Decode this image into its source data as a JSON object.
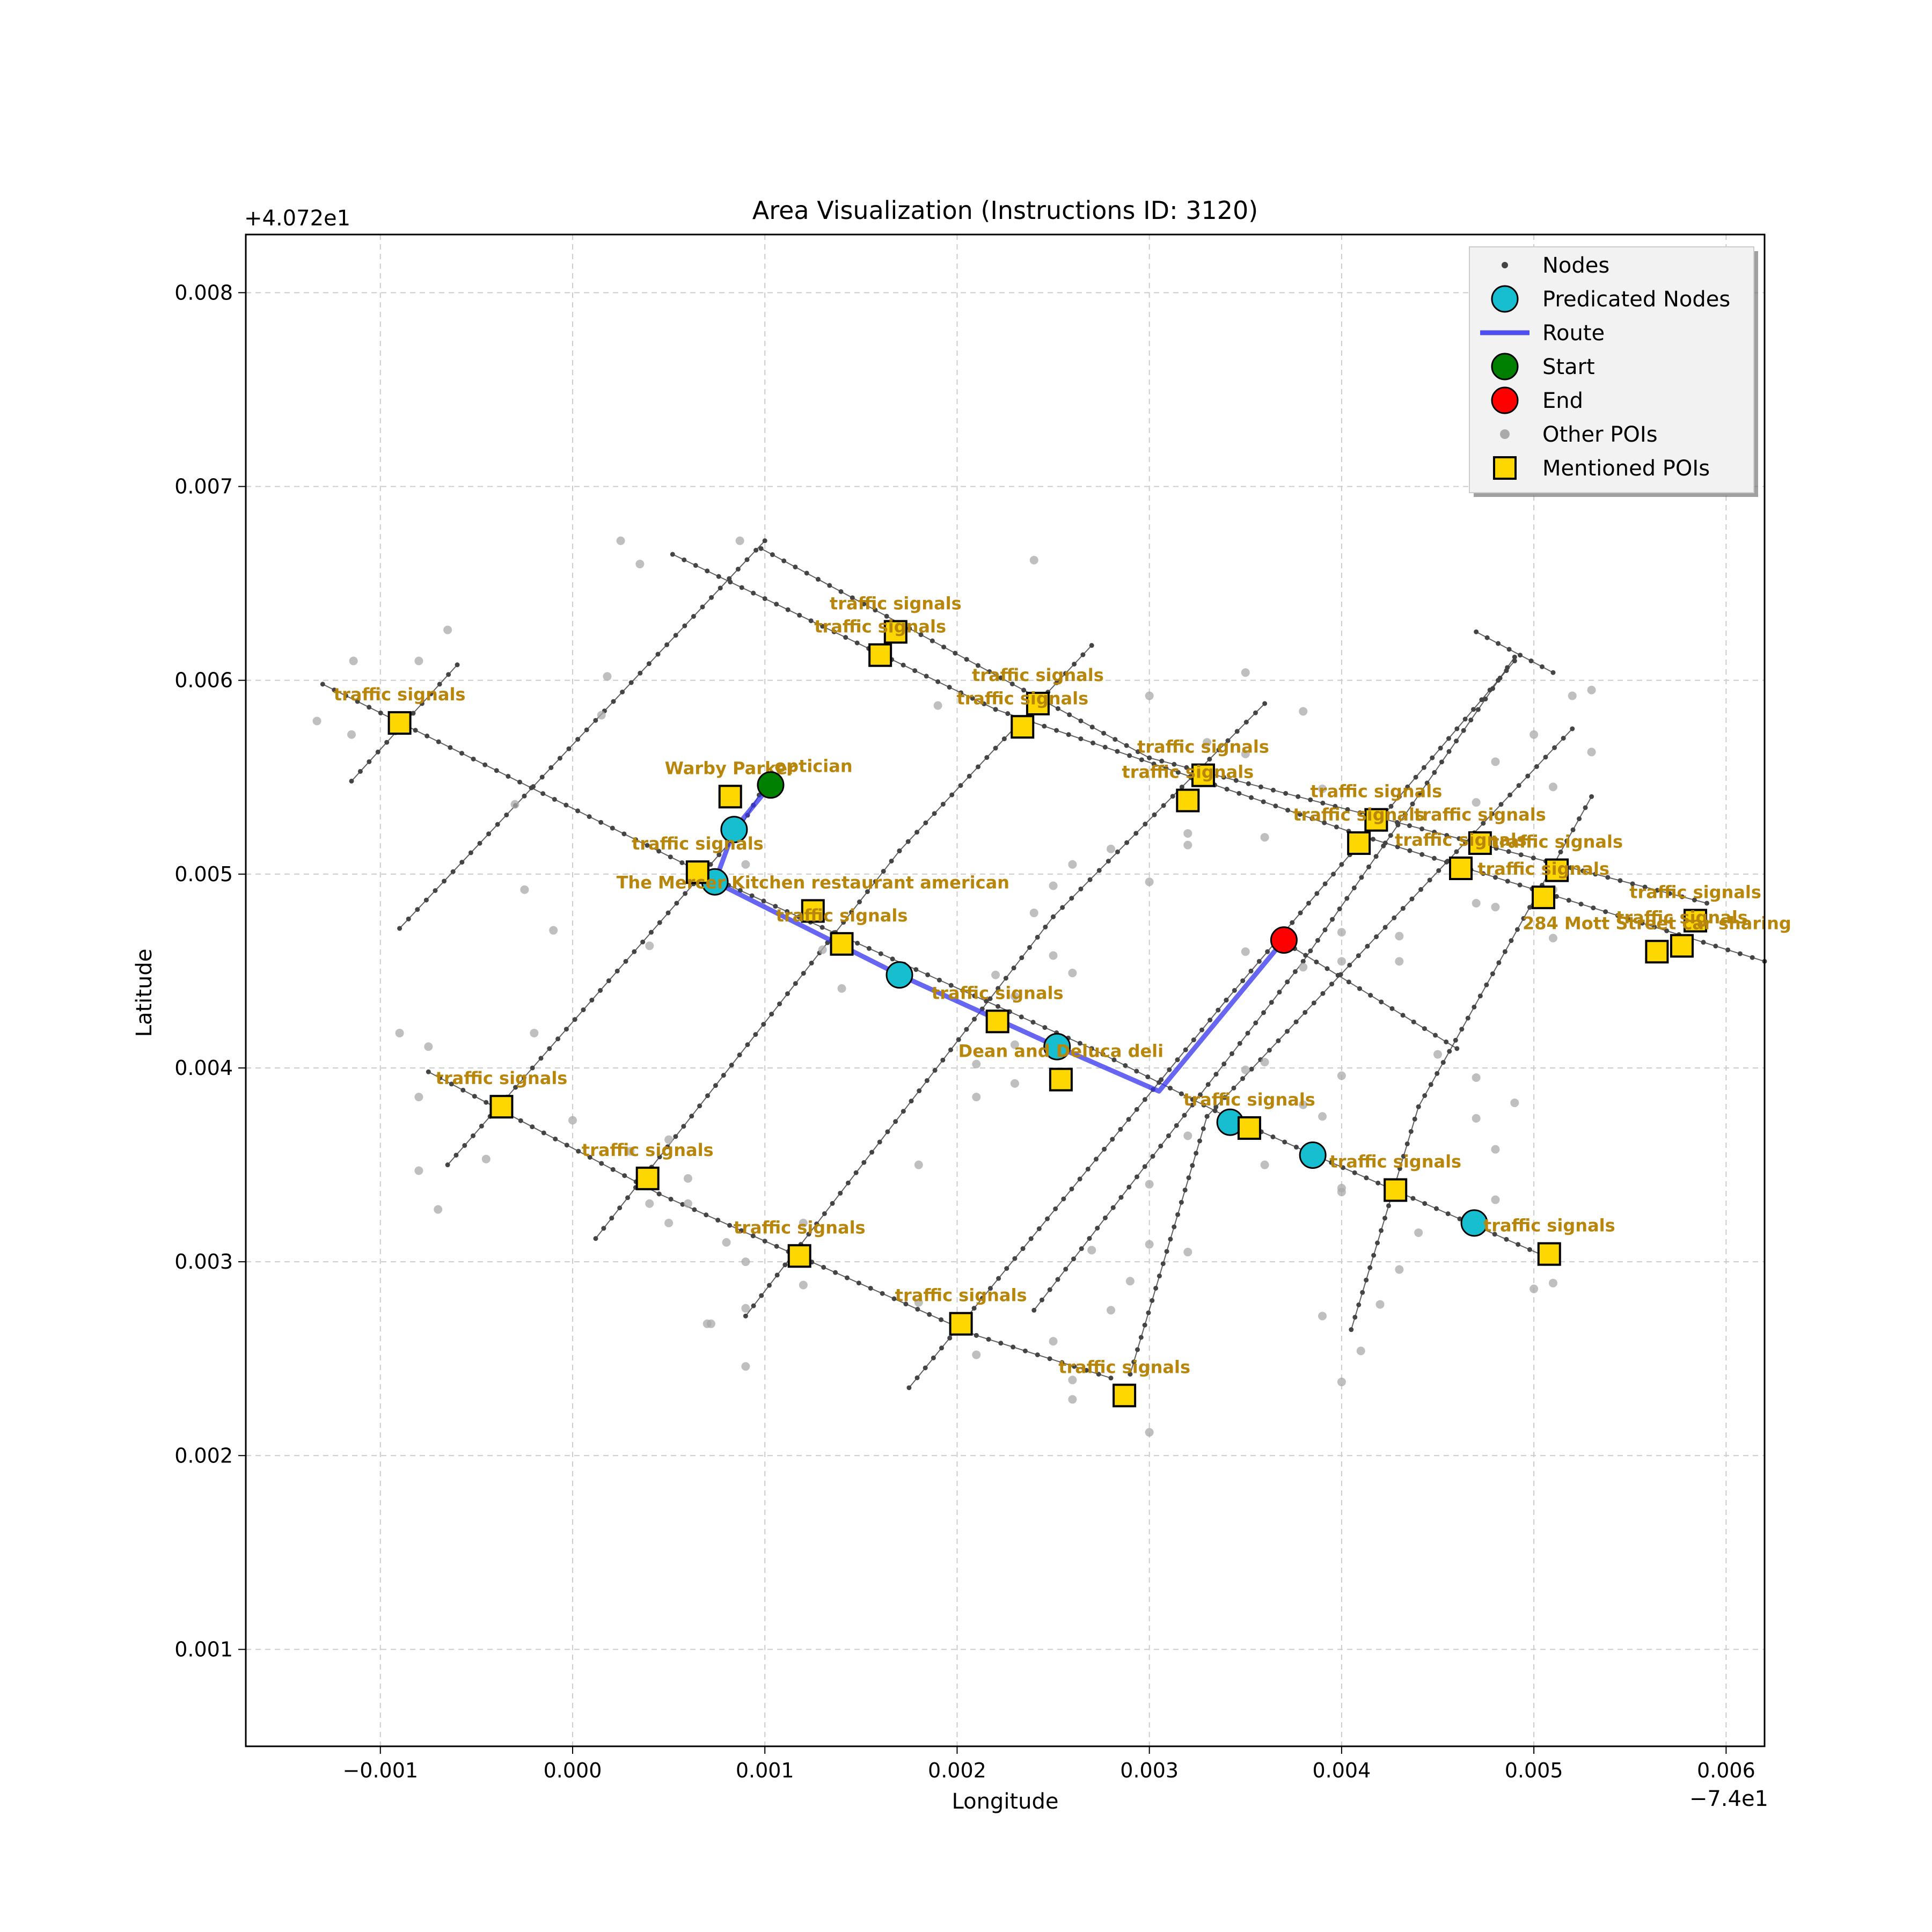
{
  "chart_data": {
    "type": "scatter",
    "title": "Area Visualization (Instructions ID: 3120)",
    "xlabel": "Longitude",
    "ylabel": "Latitude",
    "x_offset_label": "−7.4e1",
    "y_offset_label": "+4.072e1",
    "xlim": [
      -0.0017,
      0.0062
    ],
    "ylim": [
      0.0005,
      0.0083
    ],
    "x_ticks": [
      -0.001,
      0.0,
      0.001,
      0.002,
      0.003,
      0.004,
      0.005,
      0.006
    ],
    "x_tick_labels": [
      "−0.001",
      "0.000",
      "0.001",
      "0.002",
      "0.003",
      "0.004",
      "0.005",
      "0.006"
    ],
    "y_ticks": [
      0.001,
      0.002,
      0.003,
      0.004,
      0.005,
      0.006,
      0.007,
      0.008
    ],
    "y_tick_labels": [
      "0.001",
      "0.002",
      "0.003",
      "0.004",
      "0.005",
      "0.006",
      "0.007",
      "0.008"
    ],
    "grid": true,
    "legend_position": "top-right",
    "legend": [
      {
        "label": "Nodes",
        "kind": "small-dot",
        "color": "#444444"
      },
      {
        "label": "Predicated Nodes",
        "kind": "circle",
        "color": "#17becf"
      },
      {
        "label": "Route",
        "kind": "line",
        "color": "#3333ee"
      },
      {
        "label": "Start",
        "kind": "circle",
        "color": "#008000"
      },
      {
        "label": "End",
        "kind": "circle",
        "color": "#ff0000"
      },
      {
        "label": "Other POIs",
        "kind": "gray-dot",
        "color": "#aaaaaa"
      },
      {
        "label": "Mentioned POIs",
        "kind": "square",
        "color": "#ffd700"
      }
    ],
    "colors": {
      "node": "#444444",
      "predicated": "#17becf",
      "route": "#3333ee",
      "start": "#008000",
      "end": "#ff0000",
      "other_poi": "#aaaaaa",
      "mentioned_poi": "#ffd700",
      "poi_label": "#b8860b",
      "grid": "#cccccc"
    },
    "streets": [
      [
        [
          -0.0013,
          0.00598
        ],
        [
          0.00075,
          0.00497
        ],
        [
          0.0027,
          0.0041
        ],
        [
          0.0034,
          0.00375
        ],
        [
          0.0051,
          0.00301
        ]
      ],
      [
        [
          -0.00075,
          0.00398
        ],
        [
          0.00045,
          0.00335
        ],
        [
          0.0021,
          0.00262
        ],
        [
          0.0028,
          0.0024
        ]
      ],
      [
        [
          0.00052,
          0.00665
        ],
        [
          0.0022,
          0.00585
        ],
        [
          0.0041,
          0.0052
        ],
        [
          0.0062,
          0.00455
        ]
      ],
      [
        [
          0.00098,
          0.00668
        ],
        [
          0.003,
          0.0056
        ],
        [
          0.0059,
          0.00485
        ]
      ],
      [
        [
          0.0047,
          0.00625
        ],
        [
          0.0051,
          0.00604
        ]
      ],
      [
        [
          0.0037,
          0.00465
        ],
        [
          0.0046,
          0.0041
        ]
      ],
      [
        [
          -0.00115,
          0.00548
        ],
        [
          -0.0006,
          0.00608
        ]
      ],
      [
        [
          -0.0009,
          0.00472
        ],
        [
          0.001,
          0.00672
        ]
      ],
      [
        [
          -0.00065,
          0.0035
        ],
        [
          0.00085,
          0.0052
        ],
        [
          0.001,
          0.00546
        ]
      ],
      [
        [
          0.00012,
          0.00312
        ],
        [
          0.0017,
          0.00512
        ],
        [
          0.0027,
          0.00618
        ]
      ],
      [
        [
          0.0009,
          0.00272
        ],
        [
          0.0025,
          0.00478
        ],
        [
          0.0036,
          0.00588
        ]
      ],
      [
        [
          0.00175,
          0.00235
        ],
        [
          0.0034,
          0.00435
        ],
        [
          0.0049,
          0.0061
        ]
      ],
      [
        [
          0.0024,
          0.00275
        ],
        [
          0.0038,
          0.00455
        ],
        [
          0.0049,
          0.00612
        ]
      ],
      [
        [
          0.0029,
          0.00242
        ],
        [
          0.0033,
          0.00375
        ],
        [
          0.0052,
          0.00575
        ]
      ],
      [
        [
          0.00405,
          0.00265
        ],
        [
          0.0044,
          0.0038
        ],
        [
          0.0053,
          0.0054
        ]
      ]
    ],
    "route": [
      [
        0.00103,
        0.00546
      ],
      [
        0.00084,
        0.00523
      ],
      [
        0.00074,
        0.00496
      ],
      [
        0.0017,
        0.00448
      ],
      [
        0.00252,
        0.00411
      ],
      [
        0.00305,
        0.00388
      ],
      [
        0.0037,
        0.00466
      ]
    ],
    "predicated_nodes": [
      [
        0.00084,
        0.00523
      ],
      [
        0.00074,
        0.00496
      ],
      [
        0.0017,
        0.00448
      ],
      [
        0.00252,
        0.00411
      ],
      [
        0.00342,
        0.00372
      ],
      [
        0.00385,
        0.00355
      ],
      [
        0.00469,
        0.0032
      ]
    ],
    "start": [
      0.00103,
      0.00546
    ],
    "end": [
      0.0037,
      0.00466
    ],
    "other_pois": [
      [
        0.00025,
        0.00672
      ],
      [
        0.00035,
        0.0066
      ],
      [
        0.00087,
        0.00672
      ],
      [
        0.0024,
        0.00662
      ],
      [
        -0.00114,
        0.0061
      ],
      [
        -0.0008,
        0.0061
      ],
      [
        -0.00065,
        0.00626
      ],
      [
        -0.00133,
        0.00579
      ],
      [
        -0.00115,
        0.00572
      ],
      [
        0.00018,
        0.00602
      ],
      [
        0.00015,
        0.00582
      ],
      [
        0.0019,
        0.00587
      ],
      [
        0.003,
        0.00592
      ],
      [
        0.0035,
        0.00604
      ],
      [
        0.0038,
        0.00584
      ],
      [
        0.0033,
        0.00568
      ],
      [
        0.0035,
        0.00562
      ],
      [
        0.0039,
        0.00544
      ],
      [
        0.0047,
        0.00537
      ],
      [
        0.005,
        0.00572
      ],
      [
        0.0052,
        0.00592
      ],
      [
        0.0053,
        0.00595
      ],
      [
        0.0053,
        0.00563
      ],
      [
        0.0051,
        0.00545
      ],
      [
        0.0048,
        0.00558
      ],
      [
        0.0047,
        0.00485
      ],
      [
        0.0048,
        0.00483
      ],
      [
        0.0051,
        0.00492
      ],
      [
        0.0051,
        0.00467
      ],
      [
        0.0032,
        0.00521
      ],
      [
        0.0032,
        0.00515
      ],
      [
        0.0036,
        0.00519
      ],
      [
        0.0028,
        0.00513
      ],
      [
        0.003,
        0.00496
      ],
      [
        0.0026,
        0.00505
      ],
      [
        0.0025,
        0.00494
      ],
      [
        0.0024,
        0.0048
      ],
      [
        0.0025,
        0.00458
      ],
      [
        0.0026,
        0.00449
      ],
      [
        0.0022,
        0.00448
      ],
      [
        0.0023,
        0.00437
      ],
      [
        0.0022,
        0.00427
      ],
      [
        0.0021,
        0.00402
      ],
      [
        0.0023,
        0.00392
      ],
      [
        0.0021,
        0.00385
      ],
      [
        0.0023,
        0.00412
      ],
      [
        0.0014,
        0.00441
      ],
      [
        0.0013,
        0.00461
      ],
      [
        0.0004,
        0.00463
      ],
      [
        -0.0001,
        0.00471
      ],
      [
        -0.00025,
        0.00492
      ],
      [
        -0.0003,
        0.00536
      ],
      [
        0.0009,
        0.00505
      ],
      [
        -0.0009,
        0.00418
      ],
      [
        -0.00075,
        0.00411
      ],
      [
        -0.0008,
        0.00385
      ],
      [
        -0.0008,
        0.00347
      ],
      [
        -0.0007,
        0.00327
      ],
      [
        -0.00045,
        0.00353
      ],
      [
        -0.0002,
        0.00418
      ],
      [
        0.0,
        0.00373
      ],
      [
        0.0003,
        0.00357
      ],
      [
        0.0005,
        0.00363
      ],
      [
        0.0006,
        0.00343
      ],
      [
        0.0004,
        0.0033
      ],
      [
        0.0006,
        0.0033
      ],
      [
        0.0005,
        0.0032
      ],
      [
        0.0008,
        0.0031
      ],
      [
        0.0009,
        0.003
      ],
      [
        0.0012,
        0.0032
      ],
      [
        0.0012,
        0.00288
      ],
      [
        0.0009,
        0.00276
      ],
      [
        0.0007,
        0.00268
      ],
      [
        0.00072,
        0.00268
      ],
      [
        0.0009,
        0.00246
      ],
      [
        0.0018,
        0.0035
      ],
      [
        0.0018,
        0.00279
      ],
      [
        0.002,
        0.00266
      ],
      [
        0.0021,
        0.00252
      ],
      [
        0.0025,
        0.00259
      ],
      [
        0.0026,
        0.00239
      ],
      [
        0.0026,
        0.00229
      ],
      [
        0.0027,
        0.00306
      ],
      [
        0.0028,
        0.00275
      ],
      [
        0.0029,
        0.0029
      ],
      [
        0.003,
        0.00309
      ],
      [
        0.003,
        0.0034
      ],
      [
        0.003,
        0.00212
      ],
      [
        0.0032,
        0.00365
      ],
      [
        0.0032,
        0.00305
      ],
      [
        0.0034,
        0.00368
      ],
      [
        0.0035,
        0.00399
      ],
      [
        0.0036,
        0.00403
      ],
      [
        0.0036,
        0.0035
      ],
      [
        0.0038,
        0.00381
      ],
      [
        0.0039,
        0.00375
      ],
      [
        0.004,
        0.00396
      ],
      [
        0.004,
        0.00338
      ],
      [
        0.004,
        0.00336
      ],
      [
        0.004,
        0.00238
      ],
      [
        0.0039,
        0.00272
      ],
      [
        0.0041,
        0.00254
      ],
      [
        0.0042,
        0.00278
      ],
      [
        0.0043,
        0.00296
      ],
      [
        0.0044,
        0.00315
      ],
      [
        0.0045,
        0.00407
      ],
      [
        0.0047,
        0.00395
      ],
      [
        0.0047,
        0.00374
      ],
      [
        0.0048,
        0.00358
      ],
      [
        0.0048,
        0.00332
      ],
      [
        0.0049,
        0.00382
      ],
      [
        0.005,
        0.00286
      ],
      [
        0.0051,
        0.00289
      ],
      [
        0.004,
        0.0047
      ],
      [
        0.004,
        0.00455
      ],
      [
        0.0043,
        0.00455
      ],
      [
        0.0043,
        0.00468
      ],
      [
        0.0035,
        0.0046
      ],
      [
        0.0038,
        0.00452
      ]
    ],
    "mentioned_pois": [
      {
        "label": "traffic signals",
        "x": 0.00168,
        "y": 0.00625
      },
      {
        "label": "traffic signals",
        "x": 0.0016,
        "y": 0.00613
      },
      {
        "label": "traffic signals",
        "x": 0.00242,
        "y": 0.00588
      },
      {
        "label": "traffic signals",
        "x": 0.00234,
        "y": 0.00576
      },
      {
        "label": "traffic signals",
        "x": -0.0009,
        "y": 0.00578
      },
      {
        "label": "traffic signals",
        "x": 0.00328,
        "y": 0.00551
      },
      {
        "label": "traffic signals",
        "x": 0.0032,
        "y": 0.00538
      },
      {
        "label": "Warby Parker",
        "x": 0.00082,
        "y": 0.0054
      },
      {
        "label": "traffic signals",
        "x": 0.00065,
        "y": 0.00501
      },
      {
        "label": "traffic signals",
        "x": 0.00418,
        "y": 0.00528
      },
      {
        "label": "traffic signals",
        "x": 0.00409,
        "y": 0.00516
      },
      {
        "label": "traffic signals",
        "x": 0.00472,
        "y": 0.00516
      },
      {
        "label": "traffic signals",
        "x": 0.00462,
        "y": 0.00503
      },
      {
        "label": "traffic signals",
        "x": 0.00512,
        "y": 0.00502
      },
      {
        "label": "traffic signals",
        "x": 0.00505,
        "y": 0.00488
      },
      {
        "label": "The Mercer Kitchen restaurant american",
        "x": 0.00125,
        "y": 0.00481
      },
      {
        "label": "traffic signals",
        "x": 0.0014,
        "y": 0.00464
      },
      {
        "label": "traffic signals",
        "x": 0.00584,
        "y": 0.00476
      },
      {
        "label": "traffic signals",
        "x": 0.00577,
        "y": 0.00463
      },
      {
        "label": "284 Mott Street car sharing",
        "x": 0.00564,
        "y": 0.0046
      },
      {
        "label": "traffic signals",
        "x": 0.00221,
        "y": 0.00424
      },
      {
        "label": "Dean and Deluca deli",
        "x": 0.00254,
        "y": 0.00394
      },
      {
        "label": "traffic signals",
        "x": -0.00037,
        "y": 0.0038
      },
      {
        "label": "traffic signals",
        "x": 0.00352,
        "y": 0.00369
      },
      {
        "label": "traffic signals",
        "x": 0.00039,
        "y": 0.00343
      },
      {
        "label": "traffic signals",
        "x": 0.00428,
        "y": 0.00337
      },
      {
        "label": "traffic signals",
        "x": 0.00118,
        "y": 0.00303
      },
      {
        "label": "traffic signals",
        "x": 0.00508,
        "y": 0.00304
      },
      {
        "label": "traffic signals",
        "x": 0.00202,
        "y": 0.00268
      },
      {
        "label": "traffic signals",
        "x": 0.00287,
        "y": 0.00231
      }
    ],
    "extra_labels": [
      {
        "text": "optician",
        "x": 0.00105,
        "y": 0.00556
      }
    ]
  }
}
